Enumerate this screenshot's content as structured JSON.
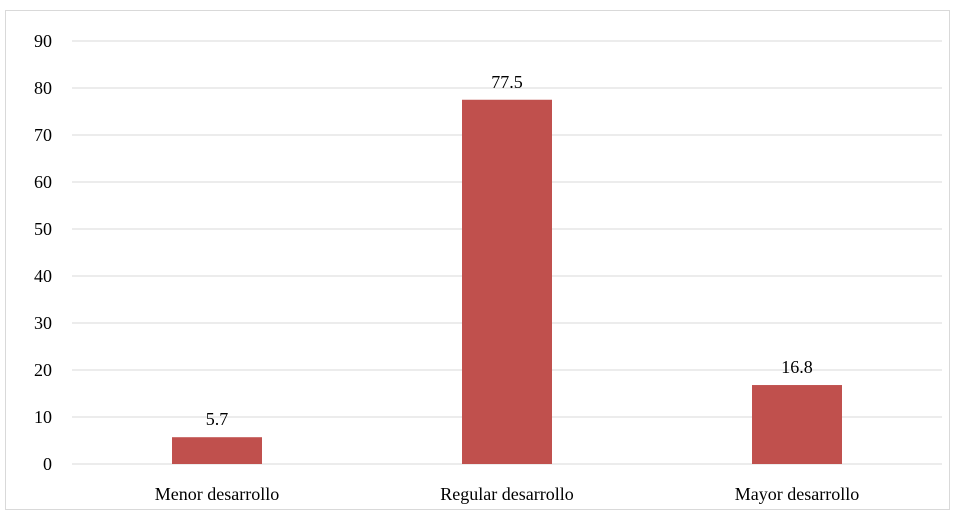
{
  "chart_data": {
    "type": "bar",
    "categories": [
      "Menor desarrollo",
      "Regular desarrollo",
      "Mayor desarrollo"
    ],
    "values": [
      5.7,
      77.5,
      16.8
    ],
    "data_labels": [
      "5.7",
      "77.5",
      "16.8"
    ],
    "title": "",
    "xlabel": "",
    "ylabel": "",
    "ylim": [
      0,
      90
    ],
    "yticks": [
      0,
      10,
      20,
      30,
      40,
      50,
      60,
      70,
      80,
      90
    ],
    "grid": true,
    "legend": "none",
    "bar_color": "#c0504d"
  }
}
